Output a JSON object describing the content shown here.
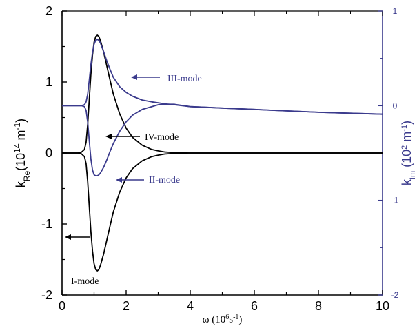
{
  "chart_data": {
    "type": "line",
    "x": [
      0,
      0.25,
      0.5,
      0.6,
      0.7,
      0.75,
      0.8,
      0.85,
      0.9,
      0.95,
      1.0,
      1.05,
      1.1,
      1.15,
      1.2,
      1.3,
      1.4,
      1.5,
      1.6,
      1.8,
      2.0,
      2.2,
      2.5,
      2.8,
      3.0,
      3.2,
      3.5,
      4.0,
      5.0,
      6.0,
      7.0,
      8.0,
      9.0,
      10.0
    ],
    "series": [
      {
        "name": "I-mode",
        "axis": "left",
        "color": "#000000",
        "values": [
          0,
          0,
          0,
          -0.01,
          -0.05,
          -0.15,
          -0.4,
          -0.75,
          -1.1,
          -1.38,
          -1.56,
          -1.64,
          -1.66,
          -1.64,
          -1.58,
          -1.42,
          -1.22,
          -1.02,
          -0.83,
          -0.55,
          -0.35,
          -0.22,
          -0.11,
          -0.05,
          -0.03,
          -0.015,
          -0.005,
          0,
          0,
          0,
          0,
          0,
          0,
          0
        ]
      },
      {
        "name": "IV-mode",
        "axis": "left",
        "color": "#000000",
        "values": [
          0,
          0,
          0,
          0.01,
          0.05,
          0.15,
          0.4,
          0.75,
          1.1,
          1.38,
          1.56,
          1.64,
          1.66,
          1.64,
          1.58,
          1.42,
          1.22,
          1.02,
          0.83,
          0.55,
          0.35,
          0.22,
          0.11,
          0.05,
          0.03,
          0.015,
          0.005,
          0,
          0,
          0,
          0,
          0,
          0,
          0
        ]
      },
      {
        "name": "III-mode",
        "axis": "right",
        "color": "#3a3a8c",
        "values": [
          0,
          0,
          0,
          0,
          0.01,
          0.04,
          0.12,
          0.27,
          0.43,
          0.56,
          0.65,
          0.69,
          0.7,
          0.69,
          0.66,
          0.57,
          0.47,
          0.38,
          0.3,
          0.2,
          0.14,
          0.1,
          0.06,
          0.04,
          0.03,
          0.02,
          0.01,
          -0.01,
          -0.025,
          -0.04,
          -0.055,
          -0.07,
          -0.08,
          -0.09
        ]
      },
      {
        "name": "II-mode",
        "axis": "right",
        "color": "#3a3a8c",
        "values": [
          0,
          0,
          0,
          0,
          -0.01,
          -0.05,
          -0.17,
          -0.37,
          -0.56,
          -0.68,
          -0.73,
          -0.74,
          -0.74,
          -0.73,
          -0.71,
          -0.65,
          -0.57,
          -0.48,
          -0.4,
          -0.27,
          -0.17,
          -0.1,
          -0.04,
          -0.01,
          0.01,
          0.015,
          0.015,
          -0.01,
          -0.025,
          -0.04,
          -0.055,
          -0.07,
          -0.08,
          -0.09
        ]
      }
    ],
    "xlim": [
      0,
      10
    ],
    "ylim_left": [
      -2,
      2
    ],
    "ylim_right": [
      -2,
      1
    ],
    "x_ticks": [
      "0",
      "2",
      "4",
      "6",
      "8",
      "10"
    ],
    "y_left_ticks": [
      "-2",
      "-1",
      "0",
      "1",
      "2"
    ],
    "y_right_ticks": [
      "-2",
      "-1",
      "0",
      "1"
    ],
    "xlabel": "ω (10⁶s⁻¹)",
    "ylabel_left": "k_Re (10¹⁴ m⁻¹)",
    "ylabel_right": "k_Im (10² m⁻¹)",
    "annotations": [
      {
        "text": "III-mode",
        "color": "#3a3a8c"
      },
      {
        "text": "IV-mode",
        "color": "#000000"
      },
      {
        "text": "II-mode",
        "color": "#3a3a8c"
      },
      {
        "text": "I-mode",
        "color": "#000000"
      }
    ],
    "left_axis_color": "#000000",
    "right_axis_color": "#3a3a8c"
  }
}
